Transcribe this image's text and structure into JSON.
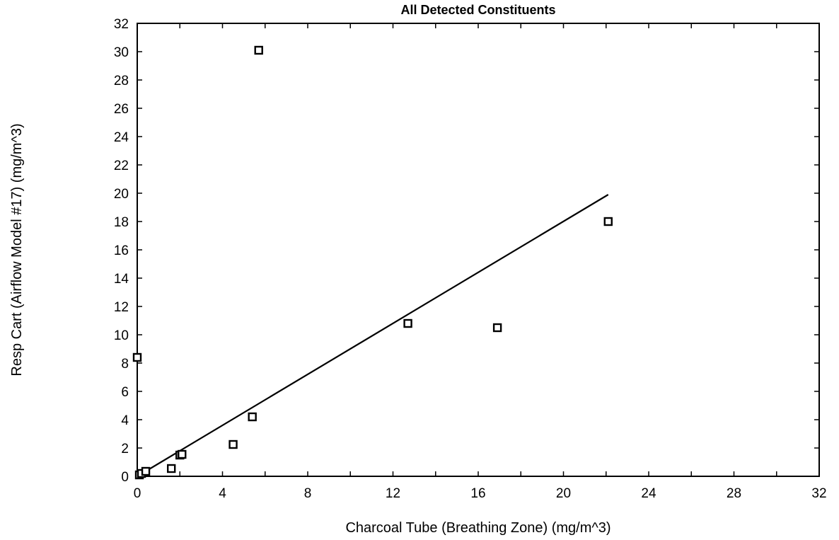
{
  "chart_data": {
    "type": "scatter",
    "title": "All Detected Constituents",
    "xlabel": "Charcoal Tube (Breathing Zone) (mg/m^3)",
    "ylabel": "Resp Cart (Airflow Model #17) (mg/m^3)",
    "xlim": [
      0,
      32
    ],
    "ylim": [
      0,
      32
    ],
    "x_ticks": [
      0,
      4,
      8,
      12,
      16,
      20,
      24,
      28,
      32
    ],
    "y_ticks": [
      0,
      2,
      4,
      6,
      8,
      10,
      12,
      14,
      16,
      18,
      20,
      22,
      24,
      26,
      28,
      30,
      32
    ],
    "grid": false,
    "marker": "open-square",
    "series": [
      {
        "points": [
          {
            "x": 0.0,
            "y": 8.4
          },
          {
            "x": 0.1,
            "y": 0.1
          },
          {
            "x": 0.2,
            "y": 0.2
          },
          {
            "x": 0.4,
            "y": 0.35
          },
          {
            "x": 1.6,
            "y": 0.55
          },
          {
            "x": 2.0,
            "y": 1.5
          },
          {
            "x": 2.1,
            "y": 1.55
          },
          {
            "x": 4.5,
            "y": 2.25
          },
          {
            "x": 5.4,
            "y": 4.2
          },
          {
            "x": 5.7,
            "y": 30.1
          },
          {
            "x": 12.7,
            "y": 10.8
          },
          {
            "x": 16.9,
            "y": 10.5
          },
          {
            "x": 22.1,
            "y": 18.0
          }
        ]
      }
    ],
    "fit_line": {
      "x": [
        0.0,
        22.1
      ],
      "y": [
        0.0,
        19.9
      ]
    },
    "colors": {
      "marker": "#000000",
      "line": "#000000",
      "axes": "#000000",
      "background": "#ffffff"
    }
  }
}
